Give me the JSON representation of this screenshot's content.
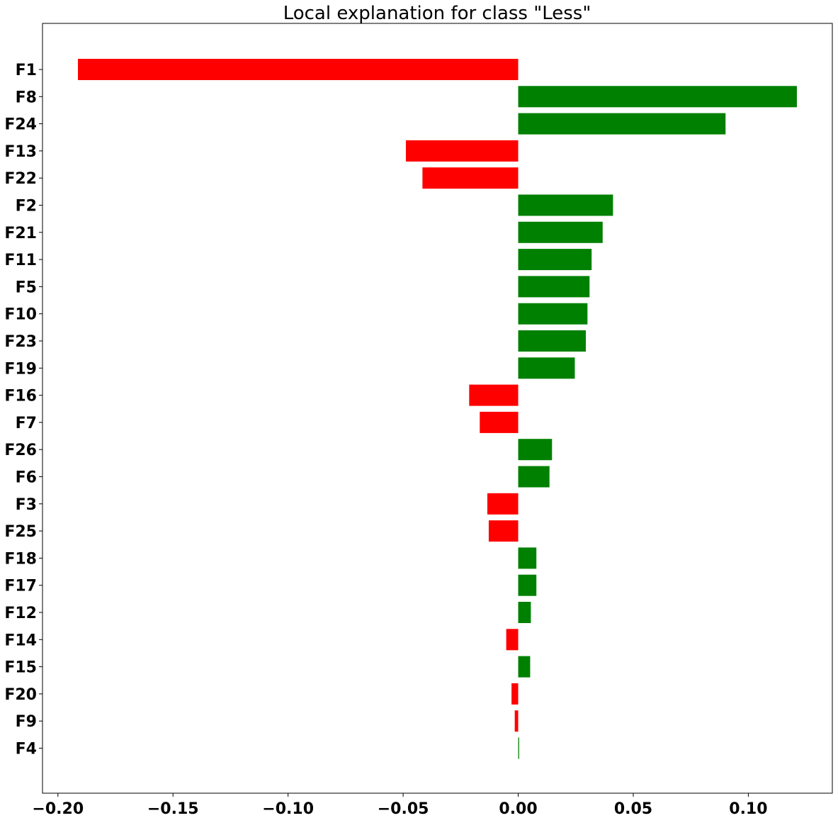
{
  "chart_data": {
    "type": "bar",
    "orientation": "horizontal",
    "title": "Local explanation for class \"Less\"",
    "xlabel": "",
    "ylabel": "",
    "xlim": [
      -0.2067,
      0.1365
    ],
    "x_ticks": [
      -0.2,
      -0.15,
      -0.1,
      -0.05,
      0.0,
      0.05,
      0.1
    ],
    "x_tick_labels": [
      "−0.20",
      "−0.15",
      "−0.10",
      "−0.05",
      "0.00",
      "0.05",
      "0.10"
    ],
    "grid": false,
    "legend": "none",
    "colors": {
      "positive": "#008000",
      "negative": "#ff0000"
    },
    "categories": [
      "F1",
      "F8",
      "F24",
      "F13",
      "F22",
      "F2",
      "F21",
      "F11",
      "F5",
      "F10",
      "F23",
      "F19",
      "F16",
      "F7",
      "F26",
      "F6",
      "F3",
      "F25",
      "F18",
      "F17",
      "F12",
      "F14",
      "F15",
      "F20",
      "F9",
      "F4"
    ],
    "values": [
      -0.1913,
      0.1211,
      0.0901,
      -0.0488,
      -0.0416,
      0.0412,
      0.0367,
      0.0319,
      0.031,
      0.0301,
      0.0294,
      0.0246,
      -0.0213,
      -0.0167,
      0.0147,
      0.0136,
      -0.0134,
      -0.0128,
      0.0079,
      0.0079,
      0.0055,
      -0.0052,
      0.0052,
      -0.0029,
      -0.0015,
      0.0004
    ]
  }
}
